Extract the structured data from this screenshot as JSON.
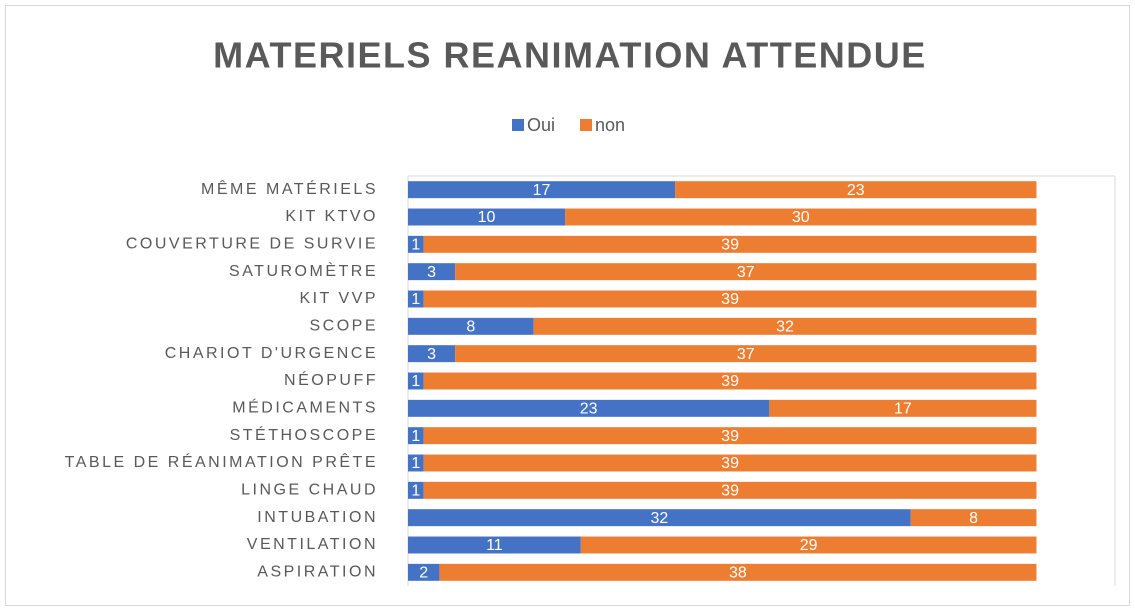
{
  "chart_data": {
    "type": "stacked-barh",
    "title": "MATERIELS REANIMATION ATTENDUE",
    "categories": [
      "MÊME MATÉRIELS",
      "KIT KTVO",
      "COUVERTURE DE SURVIE",
      "SATUROMÈTRE",
      "KIT VVP",
      "SCOPE",
      "CHARIOT D'URGENCE",
      "NÉOPUFF",
      "MÉDICAMENTS",
      "STÉTHOSCOPE",
      "TABLE DE RÉANIMATION PRÊTE",
      "LINGE CHAUD",
      "INTUBATION",
      "VENTILATION",
      "ASPIRATION"
    ],
    "series": [
      {
        "name": "Oui",
        "color": "#4472c4",
        "values": [
          17,
          10,
          1,
          3,
          1,
          8,
          3,
          1,
          23,
          1,
          1,
          1,
          32,
          11,
          2
        ]
      },
      {
        "name": "non",
        "color": "#ed7d31",
        "values": [
          23,
          30,
          39,
          37,
          39,
          32,
          37,
          39,
          17,
          39,
          39,
          39,
          8,
          29,
          38
        ]
      }
    ],
    "xlim": [
      0,
      45
    ],
    "legend": "top"
  }
}
